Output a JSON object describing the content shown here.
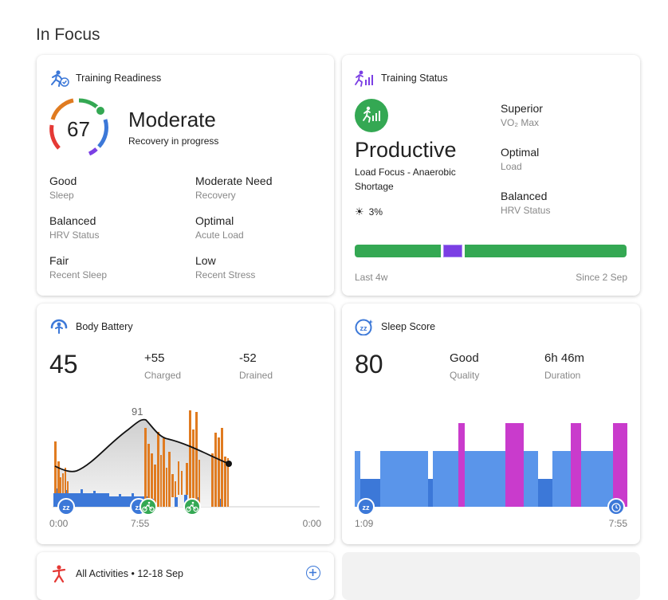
{
  "section_title": "In Focus",
  "colors": {
    "green": "#34a853",
    "purple": "#7b3fe4",
    "orange": "#e07b20",
    "blue": "#3c78d8",
    "magenta": "#c93bcc",
    "light_blue": "#5a95ea"
  },
  "training_readiness": {
    "title": "Training Readiness",
    "score": "67",
    "level": "Moderate",
    "subtitle": "Recovery in progress",
    "items": [
      {
        "value": "Good",
        "label": "Sleep"
      },
      {
        "value": "Moderate Need",
        "label": "Recovery"
      },
      {
        "value": "Balanced",
        "label": "HRV Status"
      },
      {
        "value": "Optimal",
        "label": "Acute Load"
      },
      {
        "value": "Fair",
        "label": "Recent Sleep"
      },
      {
        "value": "Low",
        "label": "Recent Stress"
      }
    ]
  },
  "training_status": {
    "title": "Training Status",
    "status": "Productive",
    "focus": "Load Focus - Anaerobic Shortage",
    "heat": "3%",
    "items": [
      {
        "value": "Superior",
        "label": "VO₂ Max"
      },
      {
        "value": "Optimal",
        "label": "Load"
      },
      {
        "value": "Balanced",
        "label": "HRV Status"
      }
    ],
    "range_start": "Last 4w",
    "range_end": "Since 2 Sep"
  },
  "body_battery": {
    "title": "Body Battery",
    "value": "45",
    "charged": "+55",
    "charged_label": "Charged",
    "drained": "-52",
    "drained_label": "Drained",
    "peak": "91",
    "x_labels": [
      "0:00",
      "7:55",
      "0:00"
    ]
  },
  "sleep_score": {
    "title": "Sleep Score",
    "score": "80",
    "quality": "Good",
    "quality_label": "Quality",
    "duration": "6h 46m",
    "duration_label": "Duration",
    "x_labels": [
      "1:09",
      "7:55"
    ]
  },
  "all_activities": {
    "title": "All Activities • 12-18 Sep"
  }
}
